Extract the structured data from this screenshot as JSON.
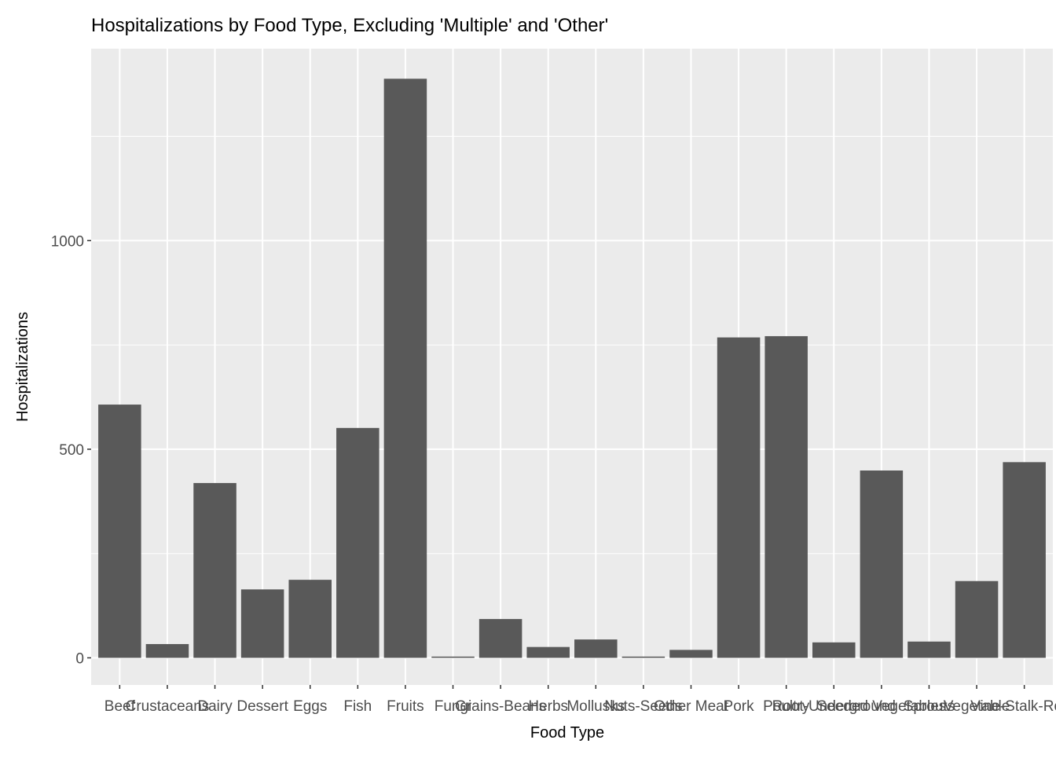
{
  "chart_data": {
    "type": "bar",
    "title": "Hospitalizations by Food Type, Excluding 'Multiple' and 'Other'",
    "xlabel": "Food Type",
    "ylabel": "Hospitalizations",
    "categories": [
      "Beef",
      "Crustaceans",
      "Dairy",
      "Dessert",
      "Eggs",
      "Fish",
      "Fruits",
      "Fungi",
      "Grains-Beans",
      "Herbs",
      "Mollusks",
      "Nuts-Seeds",
      "Other Meat",
      "Pork",
      "Poultry",
      "Root-Underground",
      "Seeded Vegetables",
      "Sprouts",
      "Vegetable",
      "Vine-Stalk-Row-"
    ],
    "values": [
      607,
      33,
      419,
      164,
      187,
      551,
      1388,
      3,
      93,
      26,
      44,
      3,
      19,
      768,
      771,
      37,
      449,
      39,
      184,
      469
    ],
    "yticks": [
      0,
      500,
      1000
    ],
    "ylim": [
      -65,
      1460
    ],
    "grid": true,
    "bar_color": "#595959",
    "panel_color": "#EBEBEB",
    "grid_color": "#FFFFFF"
  }
}
